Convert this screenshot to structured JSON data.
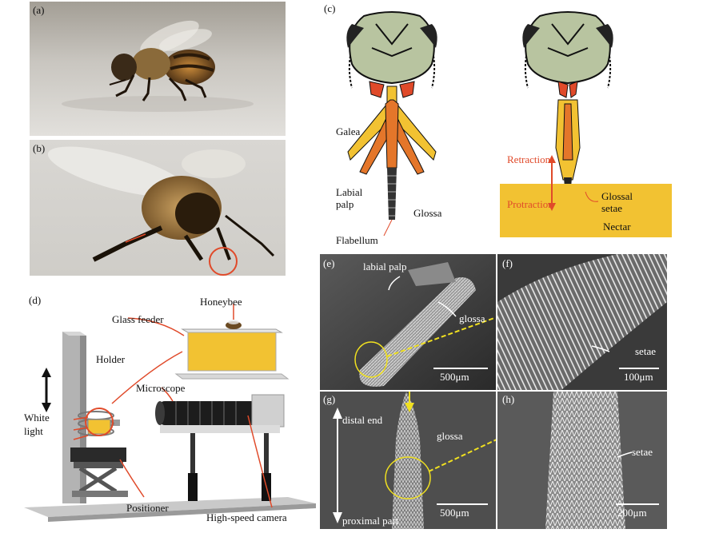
{
  "panels": {
    "a": {
      "label": "(a)"
    },
    "b": {
      "label": "(b)"
    },
    "c": {
      "label": "(c)",
      "galea": "Galea",
      "labial_palp_1": "Labial",
      "labial_palp_2": "palp",
      "glossa": "Glossa",
      "flabellum": "Flabellum",
      "retraction": "Retraction",
      "protraction": "Protraction",
      "glossal_setae_1": "Glossal",
      "glossal_setae_2": "setae",
      "nectar": "Nectar"
    },
    "d": {
      "label": "(d)",
      "honeybee": "Honeybee",
      "glass_feeder": "Glass feeder",
      "holder": "Holder",
      "microscope": "Microscope",
      "white_light_1": "White",
      "white_light_2": "light",
      "positioner": "Positioner",
      "high_speed_camera": "High-speed camera"
    },
    "e": {
      "label": "(e)",
      "labial_palp": "labial palp",
      "glossa": "glossa",
      "scale": "500μm"
    },
    "f": {
      "label": "(f)",
      "setae": "setae",
      "scale": "100μm"
    },
    "g": {
      "label": "(g)",
      "distal_end": "distal end",
      "glossa": "glossa",
      "proximal_part": "proximal part",
      "scale": "500μm"
    },
    "h": {
      "label": "(h)",
      "setae": "setae",
      "scale": "200μm"
    }
  },
  "colors": {
    "nectar": "#f2c232",
    "glossa_orange": "#e4762a",
    "head_green": "#b8c4a0",
    "red_accent": "#e04a2a",
    "yellow_highlight": "#f0e020"
  }
}
